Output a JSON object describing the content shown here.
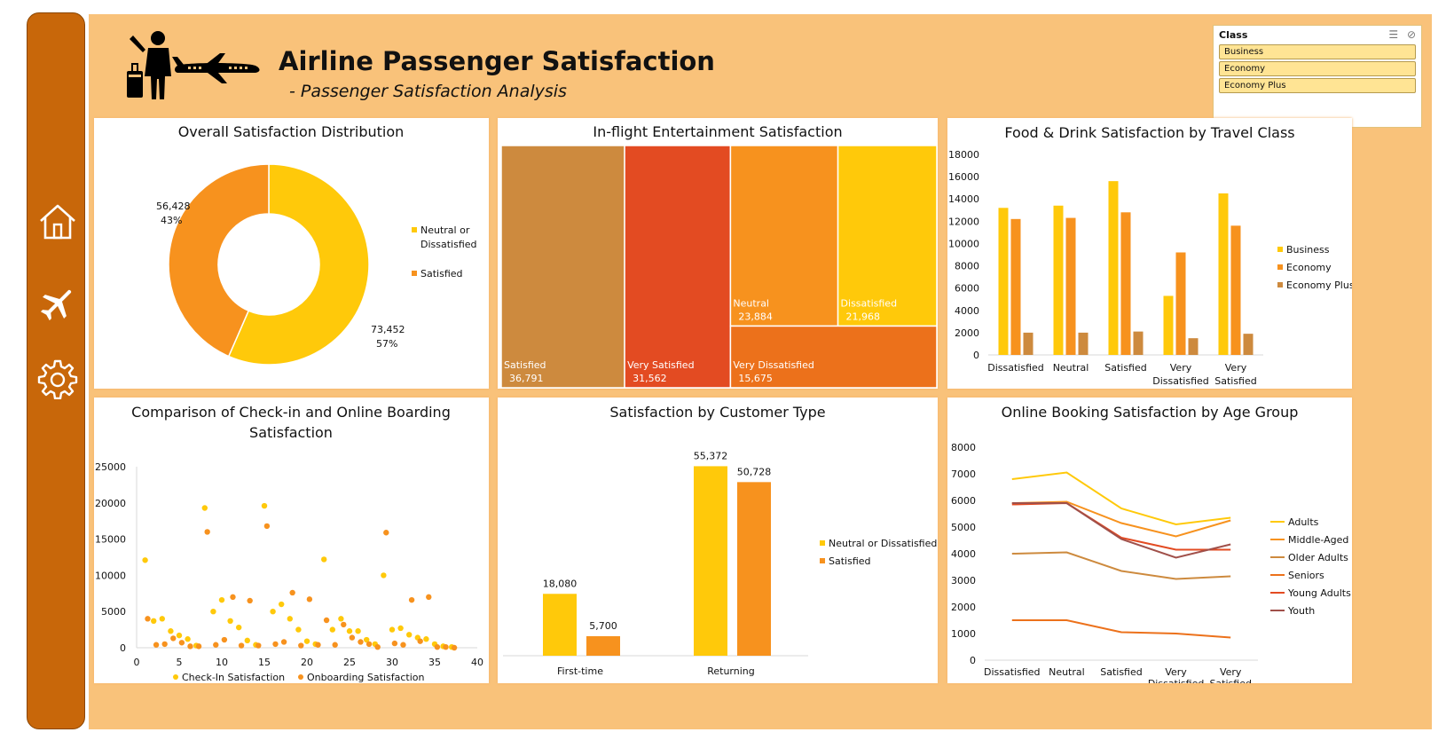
{
  "header": {
    "title": "Airline Passenger Satisfaction",
    "subtitle": "- Passenger Satisfaction Analysis"
  },
  "sidebar": {
    "items": [
      {
        "icon": "home-icon"
      },
      {
        "icon": "airplane-icon"
      },
      {
        "icon": "gear-icon"
      }
    ]
  },
  "slicer": {
    "header": "Class",
    "items": [
      "Business",
      "Economy",
      "Economy Plus"
    ]
  },
  "colors": {
    "sidebar": "#c8670a",
    "background": "#f9c27a",
    "yellow": "#ffc90a",
    "orange": "#f7921e",
    "tan": "#cd8a3e",
    "red": "#e34b22",
    "deep_orange": "#ec711b"
  },
  "chart_data": [
    {
      "type": "pie",
      "title": "Overall Satisfaction Distribution",
      "categories": [
        "Neutral or Dissatisfied",
        "Satisfied"
      ],
      "values": [
        73452,
        56428
      ],
      "value_labels": [
        "73,452",
        "56,428"
      ],
      "percent_labels": [
        "57%",
        "43%"
      ],
      "legend": [
        "Neutral or",
        "Dissatisfied",
        "Satisfied"
      ]
    },
    {
      "type": "table",
      "title": "In-flight Entertainment Satisfaction",
      "categories": [
        "Satisfied",
        "Very Satisfied",
        "Neutral",
        "Dissatisfied",
        "Very Dissatisfied"
      ],
      "values": [
        36791,
        31562,
        23884,
        21968,
        15675
      ],
      "value_labels": [
        "36,791",
        "31,562",
        "23,884",
        "21,968",
        "15,675"
      ]
    },
    {
      "type": "bar",
      "title": "Food & Drink Satisfaction by Travel Class",
      "categories": [
        "Dissatisfied",
        "Neutral",
        "Satisfied",
        "Very Dissatisfied",
        "Very Satisfied"
      ],
      "category_lines": [
        [
          "Dissatisfied"
        ],
        [
          "Neutral"
        ],
        [
          "Satisfied"
        ],
        [
          "Very",
          "Dissatisfied"
        ],
        [
          "Very",
          "Satisfied"
        ]
      ],
      "series": [
        {
          "name": "Business",
          "values": [
            13200,
            13400,
            15600,
            5300,
            14500
          ]
        },
        {
          "name": "Economy",
          "values": [
            12200,
            12300,
            12800,
            9200,
            11600
          ]
        },
        {
          "name": "Economy Plus",
          "values": [
            2000,
            2000,
            2100,
            1500,
            1900
          ]
        }
      ],
      "ylim": [
        0,
        18000
      ],
      "yticks": [
        "0",
        "2000",
        "4000",
        "6000",
        "8000",
        "10000",
        "12000",
        "14000",
        "16000",
        "18000"
      ],
      "legend": "right"
    },
    {
      "type": "scatter",
      "title": "Comparison of Check-in and Online Boarding Satisfaction",
      "title_lines": [
        "Comparison of Check-in and Online Boarding",
        "Satisfaction"
      ],
      "series": [
        {
          "name": "Check-In Satisfaction",
          "x": [
            1,
            2,
            3,
            4,
            5,
            6,
            7,
            8,
            9,
            10,
            11,
            12,
            13,
            14,
            15,
            16,
            17,
            18,
            19,
            20,
            21,
            22,
            23,
            24,
            25,
            26,
            27,
            28,
            29,
            30,
            31,
            32,
            33,
            34,
            35,
            36,
            37
          ],
          "y": [
            12100,
            3700,
            4000,
            2300,
            1700,
            1200,
            300,
            19300,
            5000,
            6600,
            3700,
            2800,
            1000,
            400,
            19600,
            5000,
            6000,
            4000,
            2500,
            900,
            500,
            12200,
            2500,
            4000,
            2300,
            2300,
            1100,
            500,
            10000,
            2500,
            2700,
            1800,
            1400,
            1200,
            500,
            200,
            100
          ]
        },
        {
          "name": "Onboarding Satisfaction",
          "x": [
            1,
            2,
            3,
            4,
            5,
            6,
            7,
            8,
            9,
            10,
            11,
            12,
            13,
            14,
            15,
            16,
            17,
            18,
            19,
            20,
            21,
            22,
            23,
            24,
            25,
            26,
            27,
            28,
            29,
            30,
            31,
            32,
            33,
            34,
            35,
            36,
            37
          ],
          "y": [
            4000,
            400,
            500,
            1300,
            700,
            200,
            200,
            16000,
            400,
            1100,
            7000,
            300,
            6500,
            300,
            16800,
            500,
            800,
            7600,
            300,
            6700,
            400,
            3800,
            400,
            3200,
            1400,
            800,
            500,
            100,
            15900,
            600,
            400,
            6600,
            900,
            7000,
            100,
            100,
            0
          ]
        }
      ],
      "xlim": [
        0,
        40
      ],
      "ylim": [
        0,
        25000
      ],
      "xticks": [
        "0",
        "5",
        "10",
        "15",
        "20",
        "25",
        "30",
        "35",
        "40"
      ],
      "yticks": [
        "0",
        "5000",
        "10000",
        "15000",
        "20000",
        "25000"
      ],
      "legend": "bottom"
    },
    {
      "type": "bar",
      "title": "Satisfaction by Customer Type",
      "categories": [
        "First-time",
        "Returning"
      ],
      "series": [
        {
          "name": "Neutral or Dissatisfied",
          "values": [
            18080,
            55372
          ],
          "labels": [
            "18,080",
            "55,372"
          ]
        },
        {
          "name": "Satisfied",
          "values": [
            5700,
            50728
          ],
          "labels": [
            "5,700",
            "50,728"
          ]
        }
      ],
      "legend": "right"
    },
    {
      "type": "line",
      "title": "Online Booking Satisfaction by Age Group",
      "categories": [
        "Dissatisfied",
        "Neutral",
        "Satisfied",
        "Very Dissatisfied",
        "Very Satisfied"
      ],
      "category_lines": [
        [
          "Dissatisfied"
        ],
        [
          "Neutral"
        ],
        [
          "Satisfied"
        ],
        [
          "Very",
          "Dissatisfied"
        ],
        [
          "Very",
          "Satisfied"
        ]
      ],
      "series": [
        {
          "name": "Adults",
          "values": [
            6800,
            7050,
            5700,
            5100,
            5350
          ]
        },
        {
          "name": "Middle-Aged",
          "values": [
            5900,
            5950,
            5150,
            4650,
            5250
          ]
        },
        {
          "name": "Older Adults",
          "values": [
            4000,
            4050,
            3350,
            3050,
            3150
          ]
        },
        {
          "name": "Seniors",
          "values": [
            1500,
            1500,
            1050,
            1000,
            850
          ]
        },
        {
          "name": "Young Adults",
          "values": [
            5850,
            5900,
            4600,
            4150,
            4150
          ]
        },
        {
          "name": "Youth",
          "values": [
            5900,
            5900,
            4550,
            3850,
            4350
          ]
        }
      ],
      "ylim": [
        0,
        8000
      ],
      "yticks": [
        "0",
        "1000",
        "2000",
        "3000",
        "4000",
        "5000",
        "6000",
        "7000",
        "8000"
      ],
      "legend": "right"
    }
  ]
}
